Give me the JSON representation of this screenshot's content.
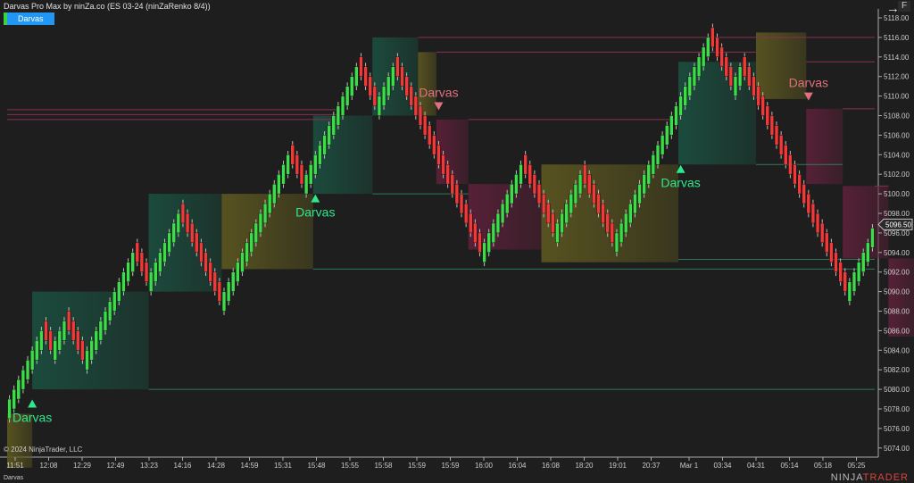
{
  "window": {
    "title": "Darvas Pro Max by ninZa.co (ES 03-24 (ninZaRenko 8/4))",
    "indicator_button": "Darvas",
    "copyright": "© 2024 NinjaTrader, LLC",
    "bottom_label": "Darvas",
    "logo": "NINJATRADER",
    "f_button": "F",
    "arrow_icon": "arrow-right-icon"
  },
  "colors": {
    "up": "#3ddc4a",
    "down": "#f03a3a",
    "green_box": "#1b4d3e",
    "yellow_box": "#5a5520",
    "pink_box": "#5a2038",
    "signal_up": "#2ee88a",
    "signal_down": "#e0707e",
    "price_tag": "#c8c8c8"
  },
  "chart_data": {
    "type": "candlestick-renko",
    "instrument": "ES 03-24",
    "ylim": [
      5073,
      5119
    ],
    "y_ticks": [
      "5074.00",
      "5076.00",
      "5078.00",
      "5080.00",
      "5082.00",
      "5084.00",
      "5086.00",
      "5088.00",
      "5090.00",
      "5092.00",
      "5094.00",
      "5096.00",
      "5098.00",
      "5100.00",
      "5102.00",
      "5104.00",
      "5106.00",
      "5108.00",
      "5110.00",
      "5112.00",
      "5114.00",
      "5116.00",
      "5118.00"
    ],
    "x_ticks": [
      "11:51",
      "12:08",
      "12:29",
      "12:49",
      "13:23",
      "14:16",
      "14:28",
      "14:59",
      "15:31",
      "15:48",
      "15:55",
      "15:58",
      "15:59",
      "15:59",
      "16:00",
      "16:04",
      "16:08",
      "18:20",
      "19:01",
      "20:37",
      "Mar 1",
      "03:34",
      "04:31",
      "05:14",
      "05:18",
      "05:25"
    ],
    "last_price": "5096.50",
    "closes": [
      5079,
      5080,
      5081,
      5082,
      5083,
      5084,
      5085,
      5086,
      5085,
      5084,
      5085,
      5086,
      5087,
      5086,
      5085,
      5084,
      5083,
      5084,
      5085,
      5086,
      5087,
      5088,
      5089,
      5090,
      5091,
      5092,
      5093,
      5094,
      5093,
      5092,
      5091,
      5092,
      5093,
      5094,
      5095,
      5096,
      5097,
      5098,
      5097,
      5096,
      5095,
      5094,
      5093,
      5092,
      5091,
      5090,
      5089,
      5090,
      5091,
      5092,
      5093,
      5094,
      5095,
      5096,
      5097,
      5098,
      5099,
      5100,
      5101,
      5102,
      5103,
      5104,
      5103,
      5102,
      5101,
      5102,
      5103,
      5104,
      5105,
      5106,
      5107,
      5108,
      5109,
      5110,
      5111,
      5112,
      5113,
      5112,
      5111,
      5110,
      5109,
      5110,
      5111,
      5112,
      5113,
      5112,
      5111,
      5110,
      5109,
      5108,
      5107,
      5106,
      5105,
      5104,
      5103,
      5102,
      5101,
      5100,
      5099,
      5098,
      5097,
      5096,
      5095,
      5094,
      5095,
      5096,
      5097,
      5098,
      5099,
      5100,
      5101,
      5102,
      5103,
      5102,
      5101,
      5100,
      5099,
      5098,
      5097,
      5096,
      5097,
      5098,
      5099,
      5100,
      5101,
      5102,
      5101,
      5100,
      5099,
      5098,
      5097,
      5096,
      5095,
      5096,
      5097,
      5098,
      5099,
      5100,
      5101,
      5102,
      5103,
      5104,
      5105,
      5106,
      5107,
      5108,
      5109,
      5110,
      5111,
      5112,
      5113,
      5114,
      5115,
      5116,
      5115,
      5114,
      5113,
      5112,
      5111,
      5112,
      5113,
      5112,
      5111,
      5110,
      5109,
      5108,
      5107,
      5106,
      5105,
      5104,
      5103,
      5102,
      5101,
      5100,
      5099,
      5098,
      5097,
      5096,
      5095,
      5094,
      5093,
      5092,
      5091,
      5090,
      5091,
      5092,
      5093,
      5094,
      5095,
      5096.5
    ],
    "boxes": [
      {
        "start": 0,
        "end": 5.5,
        "top": 5077.5,
        "bottom": 5072,
        "kind": "yellow"
      },
      {
        "start": 5.5,
        "end": 31,
        "top": 5090,
        "bottom": 5080,
        "kind": "green"
      },
      {
        "start": 31,
        "end": 47,
        "top": 5100,
        "bottom": 5090,
        "kind": "green"
      },
      {
        "start": 47,
        "end": 67,
        "top": 5100,
        "bottom": 5092.3,
        "kind": "yellow"
      },
      {
        "start": 67,
        "end": 80,
        "top": 5108,
        "bottom": 5100,
        "kind": "green"
      },
      {
        "start": 80,
        "end": 90,
        "top": 5116,
        "bottom": 5108,
        "kind": "green"
      },
      {
        "start": 90,
        "end": 94,
        "top": 5114.5,
        "bottom": 5108,
        "kind": "yellow"
      },
      {
        "start": 94,
        "end": 101,
        "top": 5107.6,
        "bottom": 5101,
        "kind": "pink"
      },
      {
        "start": 101,
        "end": 117,
        "top": 5101,
        "bottom": 5094.3,
        "kind": "pink"
      },
      {
        "start": 117,
        "end": 147,
        "top": 5103,
        "bottom": 5093,
        "kind": "yellow"
      },
      {
        "start": 147,
        "end": 164,
        "top": 5113.5,
        "bottom": 5103,
        "kind": "green"
      },
      {
        "start": 164,
        "end": 175,
        "top": 5116.5,
        "bottom": 5109.7,
        "kind": "yellow"
      },
      {
        "start": 175,
        "end": 183,
        "top": 5108.7,
        "bottom": 5101,
        "kind": "pink"
      },
      {
        "start": 183,
        "end": 193,
        "top": 5100.8,
        "bottom": 5093.4,
        "kind": "pink"
      },
      {
        "start": 193,
        "end": 199,
        "top": 5093.4,
        "bottom": 5085.4,
        "kind": "pink"
      }
    ],
    "levels": [
      {
        "price": 5080,
        "start": 31,
        "kind": "green"
      },
      {
        "price": 5092.3,
        "start": 67,
        "kind": "green"
      },
      {
        "price": 5093.3,
        "start": 147,
        "kind": "green"
      },
      {
        "price": 5100,
        "start": 80,
        "end": 101,
        "kind": "green"
      },
      {
        "price": 5103,
        "start": 164,
        "end": 183,
        "kind": "green"
      },
      {
        "price": 5116,
        "start": 90,
        "kind": "pink"
      },
      {
        "price": 5114.5,
        "start": 94,
        "end": 164,
        "kind": "pink"
      },
      {
        "price": 5113.5,
        "start": 175,
        "kind": "pink"
      },
      {
        "price": 5108.7,
        "start": 183,
        "kind": "pink"
      },
      {
        "price": 5107.6,
        "start": 101,
        "end": 147,
        "kind": "pink"
      },
      {
        "price": 5100.8,
        "start": 193,
        "kind": "pink"
      },
      {
        "price": 5108.6,
        "start": 0,
        "end": 73,
        "kind": "pink"
      },
      {
        "price": 5108.1,
        "start": 0,
        "end": 73,
        "kind": "pink"
      },
      {
        "price": 5107.6,
        "start": 0,
        "end": 73,
        "kind": "pink"
      }
    ],
    "signals": [
      {
        "bar": 5,
        "price": 5078.5,
        "direction": "up",
        "label": "Darvas"
      },
      {
        "bar": 67,
        "price": 5099.5,
        "direction": "up",
        "label": "Darvas"
      },
      {
        "bar": 147,
        "price": 5102.5,
        "direction": "up",
        "label": "Darvas"
      },
      {
        "bar": 94,
        "price": 5109,
        "direction": "down",
        "label": "Darvas"
      },
      {
        "bar": 175,
        "price": 5110,
        "direction": "down",
        "label": "Darvas"
      }
    ]
  }
}
